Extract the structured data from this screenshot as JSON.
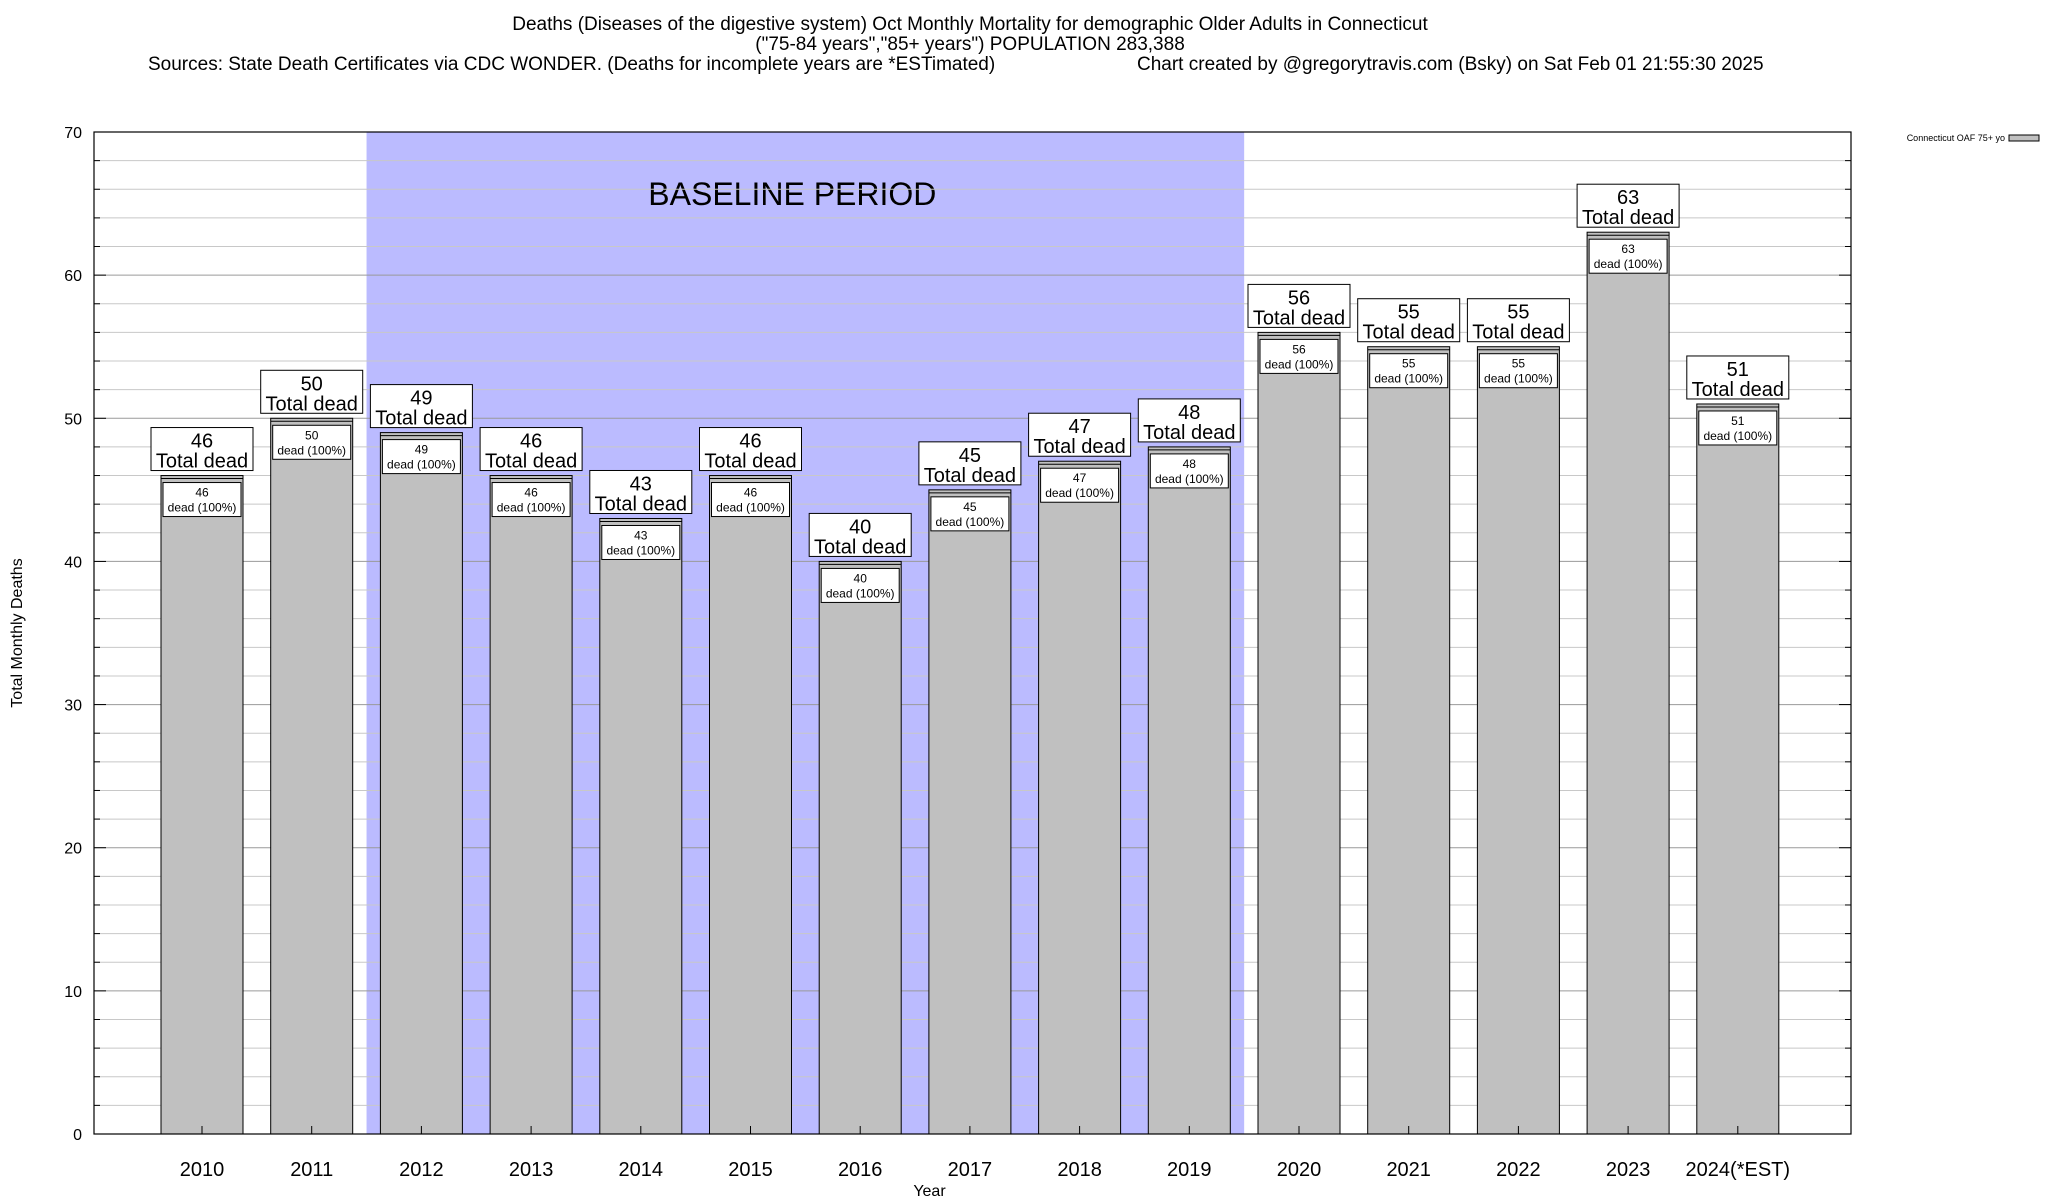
{
  "title": "Deaths (Diseases of the digestive system) Oct Monthly Mortality for demographic Older Adults in Connecticut",
  "subtitle": "(\"75-84 years\",\"85+ years\") POPULATION 283,388",
  "sources": "Sources: State Death Certificates via CDC WONDER. (Deaths for incomplete years are *ESTimated)",
  "credit": "Chart created by @gregorytravis.com (Bsky) on Sat Feb 01 21:55:30 2025",
  "chart_data": {
    "type": "bar",
    "categories": [
      "2010",
      "2011",
      "2012",
      "2013",
      "2014",
      "2015",
      "2016",
      "2017",
      "2018",
      "2019",
      "2020",
      "2021",
      "2022",
      "2023",
      "2024(*EST)"
    ],
    "series": [
      {
        "name": "Connecticut OAF 75+ yo",
        "values": [
          46,
          50,
          49,
          46,
          43,
          46,
          40,
          45,
          47,
          48,
          56,
          55,
          55,
          63,
          51
        ],
        "color": "#c0c0c0"
      }
    ],
    "bar_label_suffix": "Total dead",
    "inner_label_suffix": "dead (100%)",
    "xlabel": "Year",
    "ylabel": "Total Monthly Deaths",
    "ylim": [
      0,
      70
    ],
    "major_ticks": [
      0,
      10,
      20,
      30,
      40,
      50,
      60,
      70
    ],
    "minor_tick_step": 2,
    "grid": true,
    "legend_position": "top-right",
    "baseline": {
      "label": "BASELINE PERIOD",
      "from_category": "2012",
      "to_category": "2019",
      "color": "#bbbbff"
    }
  }
}
